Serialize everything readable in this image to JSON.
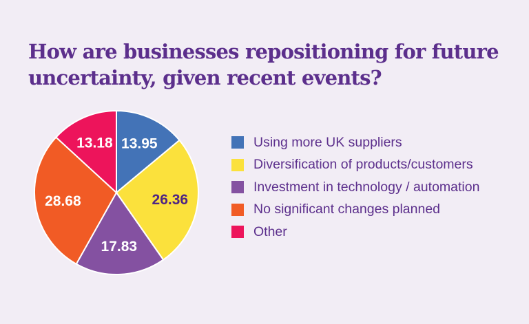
{
  "page": {
    "background_color": "#f2edf5",
    "accent_text_color": "#5c2f8c"
  },
  "header": {
    "title": "How are businesses repositioning for future uncertainty, given recent events?",
    "title_line1": "How are businesses repositioning for future",
    "title_line2": "uncertainty, given recent events?"
  },
  "chart_data": {
    "type": "pie",
    "title": "How are businesses repositioning for future uncertainty, given recent events?",
    "categories": [
      "Using more UK suppliers",
      "Diversification of products/customers",
      "Investment in technology / automation",
      "No significant changes planned",
      "Other"
    ],
    "values": [
      13.95,
      26.36,
      17.83,
      28.68,
      13.18
    ],
    "value_labels": [
      "13.95",
      "26.36",
      "17.83",
      "28.68",
      "13.18"
    ],
    "unit": "percent",
    "colors": [
      "#4373b7",
      "#fbe13c",
      "#8451a1",
      "#f15b25",
      "#ed145b"
    ],
    "value_label_colors": [
      "#ffffff",
      "#4f2583",
      "#ffffff",
      "#ffffff",
      "#ffffff"
    ],
    "slice_separator_color": "#ffffff",
    "start_angle_deg": 0,
    "direction": "clockwise",
    "legend_position": "right",
    "legend_text_color": "#5c2f8c"
  }
}
